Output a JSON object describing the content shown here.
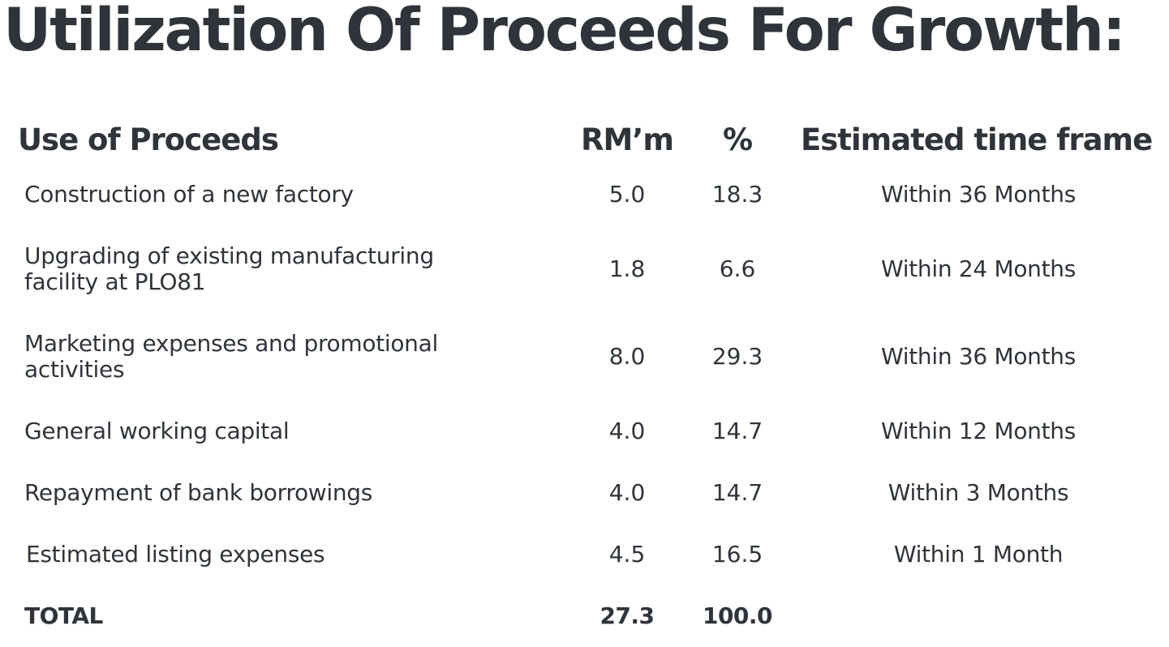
{
  "title": "Utilization Of Proceeds For Growth:",
  "table": {
    "headers": {
      "use": "Use of Proceeds",
      "rm": "RM’m",
      "pct": "%",
      "time": "Estimated time frame"
    },
    "rows": [
      {
        "use1": "Construction of a new factory",
        "use2": "",
        "rm": "5.0",
        "pct": "18.3",
        "time": "Within 36 Months"
      },
      {
        "use1": "Upgrading of existing manufacturing",
        "use2": "facility at PLO81",
        "rm": "1.8",
        "pct": "6.6",
        "time": "Within 24 Months"
      },
      {
        "use1": "Marketing expenses and promotional",
        "use2": "activities",
        "rm": "8.0",
        "pct": "29.3",
        "time": "Within 36 Months"
      },
      {
        "use1": "General working capital",
        "use2": "",
        "rm": "4.0",
        "pct": "14.7",
        "time": "Within 12 Months"
      },
      {
        "use1": "Repayment of bank borrowings",
        "use2": "",
        "rm": "4.0",
        "pct": "14.7",
        "time": "Within 3 Months"
      },
      {
        "use1": "Estimated listing expenses",
        "use2": "",
        "rm": "4.5",
        "pct": "16.5",
        "time": "Within 1 Month"
      }
    ],
    "total": {
      "label": "TOTAL",
      "rm": "27.3",
      "pct": "100.0"
    }
  }
}
